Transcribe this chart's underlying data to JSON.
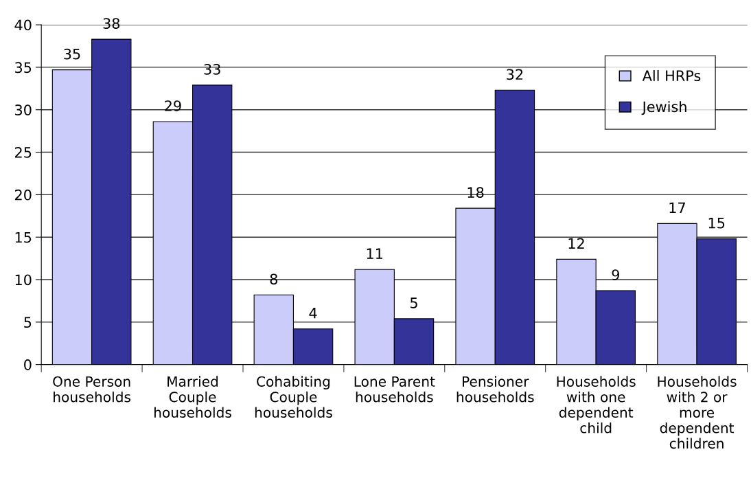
{
  "chart_data": {
    "type": "bar",
    "categories": [
      "One Person\nhouseholds",
      "Married\nCouple\nhouseholds",
      "Cohabiting\nCouple\nhouseholds",
      "Lone Parent\nhouseholds",
      "Pensioner\nhouseholds",
      "Households\nwith one\ndependent\nchild",
      "Households\nwith 2 or\nmore\ndependent\nchildren"
    ],
    "series": [
      {
        "name": "All HRPs",
        "color": "#ccccfa",
        "values": [
          34.7,
          28.6,
          8.2,
          11.2,
          18.4,
          12.4,
          16.6
        ],
        "value_labels": [
          "35",
          "29",
          "8",
          "11",
          "18",
          "12",
          "17"
        ]
      },
      {
        "name": "Jewish",
        "color": "#333399",
        "values": [
          38.3,
          32.9,
          4.2,
          5.4,
          32.3,
          8.7,
          14.8
        ],
        "value_labels": [
          "38",
          "33",
          "4",
          "5",
          "32",
          "9",
          "15"
        ]
      }
    ],
    "ylim": [
      0,
      40
    ],
    "yticks": [
      0,
      5,
      10,
      15,
      20,
      25,
      30,
      35,
      40
    ],
    "grid": "y",
    "legend": "top right"
  }
}
